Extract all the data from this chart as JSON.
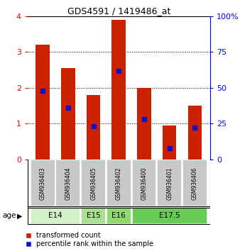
{
  "title": "GDS4591 / 1419486_at",
  "samples": [
    "GSM936403",
    "GSM936404",
    "GSM936405",
    "GSM936402",
    "GSM936400",
    "GSM936401",
    "GSM936406"
  ],
  "transformed_counts": [
    3.2,
    2.55,
    1.8,
    3.9,
    2.0,
    0.95,
    1.5
  ],
  "percentile_ranks": [
    48,
    36,
    23,
    62,
    28,
    8,
    22
  ],
  "age_groups": [
    {
      "label": "E14",
      "indices": [
        0,
        1
      ],
      "color": "#d4f0c8"
    },
    {
      "label": "E15",
      "indices": [
        2
      ],
      "color": "#aae090"
    },
    {
      "label": "E16",
      "indices": [
        3
      ],
      "color": "#90d870"
    },
    {
      "label": "E17.5",
      "indices": [
        4,
        5,
        6
      ],
      "color": "#66cc55"
    }
  ],
  "bar_color": "#cc2200",
  "marker_color": "#1111cc",
  "bar_width": 0.55,
  "ylim_left": [
    0,
    4
  ],
  "ylim_right": [
    0,
    100
  ],
  "yticks_left": [
    0,
    1,
    2,
    3,
    4
  ],
  "yticks_right": [
    0,
    25,
    50,
    75,
    100
  ],
  "background_color": "#ffffff",
  "sample_box_color": "#c8c8c8",
  "legend_labels": [
    "transformed count",
    "percentile rank within the sample"
  ],
  "age_label": "age"
}
